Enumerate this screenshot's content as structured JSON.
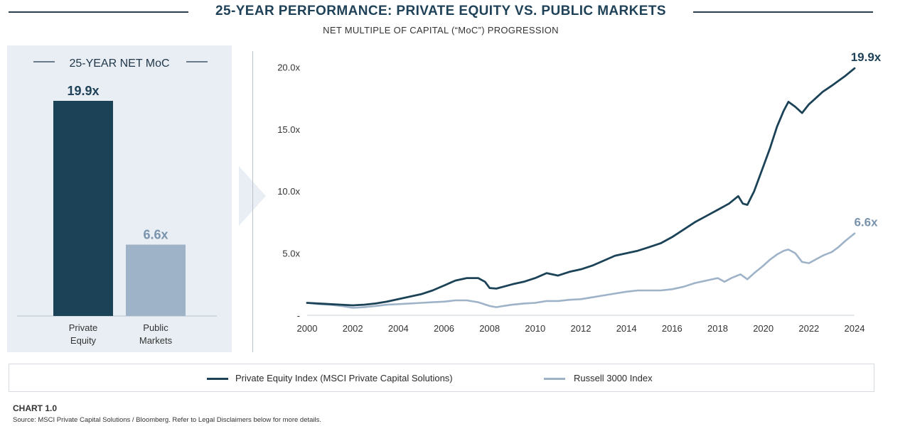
{
  "header": {
    "title": "25-YEAR PERFORMANCE: PRIVATE EQUITY VS. PUBLIC MARKETS",
    "subtitle": "NET MULTIPLE OF CAPITAL (“MoC”) PROGRESSION"
  },
  "colors": {
    "private_equity": "#1b4257",
    "public_markets": "#9fb3c8",
    "panel_bg": "#e8eef4"
  },
  "chart_data": [
    {
      "type": "bar",
      "title": "25-YEAR NET MoC",
      "categories": [
        "Private\nEquity",
        "Public\nMarkets"
      ],
      "values": [
        19.9,
        6.6
      ],
      "data_labels": [
        "19.9x",
        "6.6x"
      ],
      "ylim": [
        0,
        22
      ]
    },
    {
      "type": "line",
      "x_ticks": [
        "2000",
        "2002",
        "2004",
        "2006",
        "2008",
        "2010",
        "2012",
        "2014",
        "2016",
        "2018",
        "2020",
        "2022",
        "2024"
      ],
      "y_ticks": [
        "-",
        "5.0x",
        "10.0x",
        "15.0x",
        "20.0x"
      ],
      "y_tick_values": [
        0,
        5,
        10,
        15,
        20
      ],
      "xlim": [
        2000,
        2024
      ],
      "ylim": [
        0,
        21
      ],
      "legend_position": "bottom",
      "end_labels": [
        "19.9x",
        "6.6x"
      ],
      "series": [
        {
          "name": "Private Equity Index (MSCI Private Capital Solutions)",
          "x": [
            2000,
            2000.5,
            2001,
            2001.5,
            2002,
            2002.5,
            2003,
            2003.5,
            2004,
            2004.5,
            2005,
            2005.5,
            2006,
            2006.5,
            2007,
            2007.5,
            2007.8,
            2008,
            2008.3,
            2008.6,
            2009,
            2009.5,
            2010,
            2010.5,
            2011,
            2011.5,
            2012,
            2012.5,
            2013,
            2013.5,
            2014,
            2014.5,
            2015,
            2015.5,
            2016,
            2016.5,
            2017,
            2017.5,
            2018,
            2018.5,
            2018.9,
            2019.1,
            2019.3,
            2019.6,
            2020,
            2020.3,
            2020.6,
            2020.9,
            2021.1,
            2021.4,
            2021.7,
            2022,
            2022.3,
            2022.6,
            2023,
            2023.3,
            2023.6,
            2024
          ],
          "y": [
            1.0,
            0.95,
            0.9,
            0.85,
            0.8,
            0.85,
            0.95,
            1.1,
            1.3,
            1.5,
            1.7,
            2.0,
            2.4,
            2.8,
            3.0,
            3.0,
            2.7,
            2.2,
            2.15,
            2.3,
            2.5,
            2.7,
            3.0,
            3.4,
            3.2,
            3.5,
            3.7,
            4.0,
            4.4,
            4.8,
            5.0,
            5.2,
            5.5,
            5.8,
            6.3,
            6.9,
            7.5,
            8.0,
            8.5,
            9.0,
            9.6,
            9.0,
            8.9,
            10.0,
            12.0,
            13.5,
            15.2,
            16.5,
            17.2,
            16.8,
            16.3,
            17.0,
            17.5,
            18.0,
            18.5,
            18.9,
            19.3,
            19.9
          ]
        },
        {
          "name": "Russell 3000 Index",
          "x": [
            2000,
            2000.5,
            2001,
            2001.5,
            2002,
            2002.5,
            2003,
            2003.5,
            2004,
            2004.5,
            2005,
            2005.5,
            2006,
            2006.5,
            2007,
            2007.5,
            2008,
            2008.3,
            2008.6,
            2009,
            2009.5,
            2010,
            2010.5,
            2011,
            2011.5,
            2012,
            2012.5,
            2013,
            2013.5,
            2014,
            2014.5,
            2015,
            2015.5,
            2016,
            2016.5,
            2017,
            2017.5,
            2018,
            2018.3,
            2018.6,
            2019,
            2019.3,
            2019.6,
            2020,
            2020.3,
            2020.6,
            2020.9,
            2021.1,
            2021.4,
            2021.7,
            2022,
            2022.3,
            2022.6,
            2023,
            2023.3,
            2023.6,
            2024
          ],
          "y": [
            1.0,
            0.9,
            0.85,
            0.75,
            0.6,
            0.65,
            0.75,
            0.85,
            0.9,
            0.95,
            1.0,
            1.05,
            1.1,
            1.2,
            1.2,
            1.05,
            0.75,
            0.65,
            0.75,
            0.85,
            0.95,
            1.0,
            1.15,
            1.15,
            1.25,
            1.3,
            1.45,
            1.6,
            1.75,
            1.9,
            2.0,
            2.0,
            2.0,
            2.1,
            2.3,
            2.6,
            2.8,
            3.0,
            2.7,
            3.0,
            3.3,
            2.9,
            3.4,
            4.0,
            4.5,
            4.9,
            5.2,
            5.3,
            5.0,
            4.3,
            4.2,
            4.5,
            4.8,
            5.1,
            5.5,
            6.0,
            6.6
          ]
        }
      ]
    }
  ],
  "footer": {
    "chart_label": "CHART 1.0",
    "source": "Source: MSCI Private Capital Solutions / Bloomberg. Refer to Legal Disclaimers below for more details."
  }
}
